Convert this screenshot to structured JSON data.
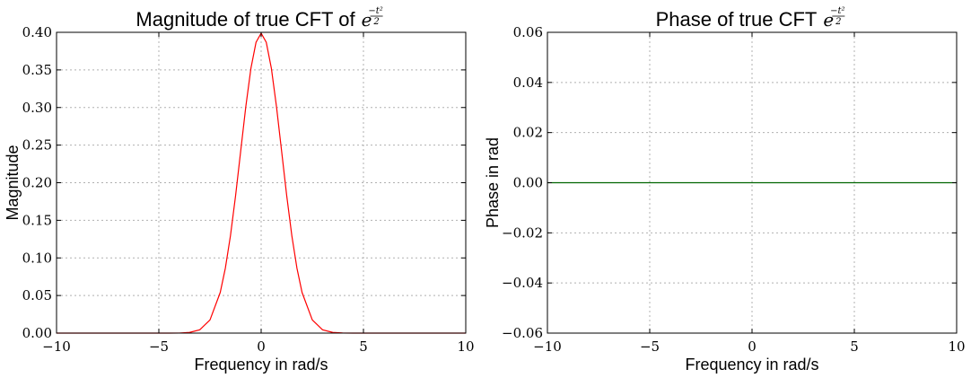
{
  "chart_data": [
    {
      "type": "line",
      "title": "Magnitude of true CFT of",
      "title_math": {
        "base": "e",
        "numerator": "−t²",
        "denominator": "2"
      },
      "xlabel": "Frequency in rad/s",
      "ylabel": "Magnitude",
      "xlim": [
        -10,
        10
      ],
      "ylim": [
        0,
        0.4
      ],
      "xticks": [
        -10,
        -5,
        0,
        5,
        10
      ],
      "xtick_labels": [
        "−10",
        "−5",
        "0",
        "5",
        "10"
      ],
      "yticks": [
        0,
        0.05,
        0.1,
        0.15,
        0.2,
        0.25,
        0.3,
        0.35,
        0.4
      ],
      "ytick_labels": [
        "0.00",
        "0.05",
        "0.10",
        "0.15",
        "0.20",
        "0.25",
        "0.30",
        "0.35",
        "0.40"
      ],
      "grid": true,
      "series": [
        {
          "color": "#ff0000",
          "x": [
            -10,
            -6,
            -4.5,
            -4,
            -3.5,
            -3,
            -2.5,
            -2,
            -1.75,
            -1.5,
            -1.25,
            -1,
            -0.75,
            -0.5,
            -0.25,
            0,
            0.25,
            0.5,
            0.75,
            1,
            1.25,
            1.5,
            1.75,
            2,
            2.5,
            3,
            3.5,
            4,
            4.5,
            6,
            10
          ],
          "y": [
            0,
            0,
            0.0,
            0.0001,
            0.0009,
            0.0044,
            0.0175,
            0.054,
            0.0863,
            0.1295,
            0.1826,
            0.242,
            0.3011,
            0.3521,
            0.3867,
            0.3989,
            0.3867,
            0.3521,
            0.3011,
            0.242,
            0.1826,
            0.1295,
            0.0863,
            0.054,
            0.0175,
            0.0044,
            0.0009,
            0.0001,
            0.0,
            0,
            0
          ]
        }
      ]
    },
    {
      "type": "line",
      "title": "Phase of true CFT",
      "title_math": {
        "base": "e",
        "numerator": "−t²",
        "denominator": "2"
      },
      "xlabel": "Frequency in rad/s",
      "ylabel": "Phase in rad",
      "xlim": [
        -10,
        10
      ],
      "ylim": [
        -0.06,
        0.06
      ],
      "xticks": [
        -10,
        -5,
        0,
        5,
        10
      ],
      "xtick_labels": [
        "−10",
        "−5",
        "0",
        "5",
        "10"
      ],
      "yticks": [
        -0.06,
        -0.04,
        -0.02,
        0,
        0.02,
        0.04,
        0.06
      ],
      "ytick_labels": [
        "−0.06",
        "−0.04",
        "−0.02",
        "0.00",
        "0.02",
        "0.04",
        "0.06"
      ],
      "grid": true,
      "series": [
        {
          "color": "#006400",
          "x": [
            -10,
            10
          ],
          "y": [
            0,
            0
          ]
        }
      ]
    }
  ]
}
